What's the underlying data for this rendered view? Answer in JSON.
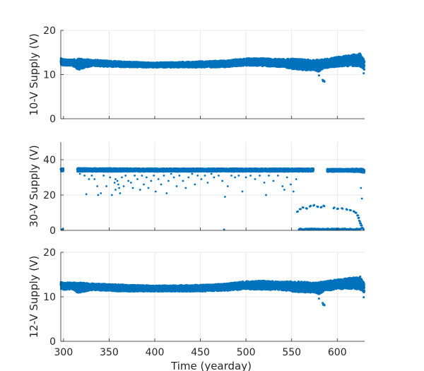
{
  "chart_data": [
    {
      "type": "scatter",
      "ylabel": "10-V Supply (V)",
      "xlabel": "",
      "xlim": [
        297,
        630
      ],
      "ylim": [
        0,
        20
      ],
      "xticks": [
        300,
        350,
        400,
        450,
        500,
        550,
        600
      ],
      "yticks": [
        0,
        10,
        20
      ],
      "show_xtick_labels": false,
      "grid": true,
      "color": "#0072BD",
      "series": [
        {
          "band_min": [
            [
              297,
              12.2
            ],
            [
              300,
              12.0
            ],
            [
              310,
              12.0
            ],
            [
              316,
              11.0
            ],
            [
              330,
              11.9
            ],
            [
              360,
              11.7
            ],
            [
              400,
              11.6
            ],
            [
              450,
              11.6
            ],
            [
              480,
              11.7
            ],
            [
              500,
              12.0
            ],
            [
              520,
              11.9
            ],
            [
              540,
              11.7
            ],
            [
              550,
              11.3
            ],
            [
              560,
              11.0
            ],
            [
              575,
              11.0
            ],
            [
              580,
              10.5
            ],
            [
              585,
              11.4
            ],
            [
              600,
              11.8
            ],
            [
              620,
              11.9
            ],
            [
              625,
              11.7
            ],
            [
              630,
              11.0
            ]
          ],
          "band_max": [
            [
              297,
              13.7
            ],
            [
              300,
              13.5
            ],
            [
              310,
              13.4
            ],
            [
              316,
              13.6
            ],
            [
              330,
              13.4
            ],
            [
              360,
              13.0
            ],
            [
              400,
              12.7
            ],
            [
              450,
              13.0
            ],
            [
              480,
              13.2
            ],
            [
              500,
              13.7
            ],
            [
              520,
              13.7
            ],
            [
              540,
              13.5
            ],
            [
              550,
              13.6
            ],
            [
              560,
              13.5
            ],
            [
              575,
              13.3
            ],
            [
              580,
              13.4
            ],
            [
              585,
              13.5
            ],
            [
              600,
              14.0
            ],
            [
              620,
              14.6
            ],
            [
              625,
              14.8
            ],
            [
              630,
              13.2
            ]
          ],
          "outliers": [
            [
              584.5,
              8.5
            ],
            [
              585.5,
              8.6
            ],
            [
              584,
              8.8
            ],
            [
              586,
              8.4
            ],
            [
              580,
              9.8
            ],
            [
              629,
              10.3
            ]
          ]
        }
      ]
    },
    {
      "type": "scatter",
      "ylabel": "30-V Supply (V)",
      "xlabel": "",
      "xlim": [
        297,
        630
      ],
      "ylim": [
        0,
        50
      ],
      "xticks": [
        300,
        350,
        400,
        450,
        500,
        550,
        600
      ],
      "yticks": [
        0,
        20,
        40
      ],
      "show_xtick_labels": false,
      "grid": true,
      "color": "#0072BD",
      "series": [
        {
          "band_min": [
            [
              297,
              33.5
            ],
            [
              316,
              33.3
            ],
            [
              400,
              33.3
            ],
            [
              500,
              33.3
            ],
            [
              573,
              33.3
            ],
            [
              590,
              33.2
            ],
            [
              610,
              33.2
            ],
            [
              625,
              33.0
            ],
            [
              630,
              32.5
            ]
          ],
          "band_max": [
            [
              297,
              35.0
            ],
            [
              316,
              35.2
            ],
            [
              400,
              35.0
            ],
            [
              500,
              35.0
            ],
            [
              573,
              35.0
            ],
            [
              590,
              34.8
            ],
            [
              610,
              34.8
            ],
            [
              625,
              35.0
            ],
            [
              630,
              34.5
            ]
          ],
          "band_gaps": [
            [
              300,
              315
            ],
            [
              574,
              589
            ]
          ],
          "low_band": [
            [
              558,
              0
            ],
            [
              626,
              0
            ]
          ],
          "mid_points": [
            [
              556,
              10.5
            ],
            [
              559,
              12
            ],
            [
              562,
              13
            ],
            [
              566,
              12.5
            ],
            [
              570,
              13.5
            ],
            [
              574,
              14
            ],
            [
              578,
              13.5
            ],
            [
              582,
              13
            ],
            [
              585,
              14
            ],
            [
              596,
              12.5
            ],
            [
              600,
              12.2
            ],
            [
              605,
              12.5
            ],
            [
              610,
              12
            ],
            [
              614,
              11.5
            ],
            [
              618,
              10.8
            ],
            [
              620,
              10
            ],
            [
              622,
              8.5
            ],
            [
              623,
              7
            ],
            [
              624,
              5.5
            ],
            [
              625,
              4
            ],
            [
              626,
              2.8
            ],
            [
              627,
              1.5
            ],
            [
              628,
              1
            ]
          ],
          "scatter": [
            [
              318,
              32
            ],
            [
              323,
              31
            ],
            [
              325,
              20.5
            ],
            [
              328,
              29
            ],
            [
              331,
              31
            ],
            [
              334,
              29
            ],
            [
              337,
              25
            ],
            [
              338,
              20
            ],
            [
              341,
              21
            ],
            [
              344,
              31
            ],
            [
              347,
              25
            ],
            [
              351,
              30
            ],
            [
              353,
              20
            ],
            [
              356,
              27
            ],
            [
              357,
              29
            ],
            [
              357,
              23
            ],
            [
              359,
              28
            ],
            [
              360,
              26
            ],
            [
              361,
              24
            ],
            [
              362,
              21
            ],
            [
              364,
              30
            ],
            [
              366,
              25
            ],
            [
              368,
              31
            ],
            [
              371,
              28
            ],
            [
              374,
              27
            ],
            [
              376,
              24
            ],
            [
              378,
              31
            ],
            [
              381,
              29
            ],
            [
              384,
              23
            ],
            [
              386,
              31
            ],
            [
              388,
              26
            ],
            [
              391,
              30
            ],
            [
              393,
              24
            ],
            [
              396,
              28
            ],
            [
              399,
              31
            ],
            [
              401,
              22
            ],
            [
              404,
              29
            ],
            [
              407,
              26
            ],
            [
              410,
              31
            ],
            [
              413,
              21
            ],
            [
              415,
              28
            ],
            [
              418,
              32
            ],
            [
              421,
              30
            ],
            [
              424,
              25
            ],
            [
              427,
              31
            ],
            [
              431,
              28
            ],
            [
              434,
              24
            ],
            [
              437,
              30
            ],
            [
              441,
              32
            ],
            [
              444,
              26
            ],
            [
              447,
              31
            ],
            [
              451,
              29
            ],
            [
              455,
              31
            ],
            [
              458,
              27
            ],
            [
              462,
              32
            ],
            [
              465,
              30
            ],
            [
              470,
              31
            ],
            [
              474,
              28
            ],
            [
              477,
              19
            ],
            [
              480,
              25
            ],
            [
              484,
              31
            ],
            [
              488,
              30
            ],
            [
              492,
              31
            ],
            [
              496,
              22
            ],
            [
              500,
              30
            ],
            [
              505,
              31
            ],
            [
              510,
              29
            ],
            [
              515,
              31
            ],
            [
              520,
              27
            ],
            [
              522,
              20
            ],
            [
              525,
              31
            ],
            [
              530,
              28
            ],
            [
              535,
              31
            ],
            [
              540,
              25
            ],
            [
              542,
              23
            ],
            [
              545,
              30
            ],
            [
              549,
              26
            ],
            [
              552,
              22
            ],
            [
              555,
              29
            ],
            [
              626,
              24
            ],
            [
              627,
              18
            ],
            [
              476,
              0.5
            ],
            [
              298,
              0.5
            ],
            [
              299,
              0.8
            ]
          ]
        }
      ]
    },
    {
      "type": "scatter",
      "ylabel": "12-V Supply (V)",
      "xlabel": "Time (yearday)",
      "xlim": [
        297,
        630
      ],
      "ylim": [
        0,
        20
      ],
      "xticks": [
        300,
        350,
        400,
        450,
        500,
        550,
        600
      ],
      "xticklabels": [
        "300",
        "350",
        "400",
        "450",
        "500",
        "550",
        "600"
      ],
      "yticks": [
        0,
        10,
        20
      ],
      "show_xtick_labels": true,
      "grid": true,
      "color": "#0072BD",
      "series": [
        {
          "band_min": [
            [
              297,
              11.7
            ],
            [
              300,
              11.6
            ],
            [
              310,
              11.6
            ],
            [
              316,
              10.8
            ],
            [
              330,
              11.5
            ],
            [
              360,
              11.2
            ],
            [
              400,
              11.2
            ],
            [
              450,
              11.2
            ],
            [
              480,
              11.4
            ],
            [
              500,
              11.7
            ],
            [
              520,
              11.6
            ],
            [
              540,
              11.5
            ],
            [
              550,
              11.2
            ],
            [
              560,
              11.0
            ],
            [
              575,
              10.9
            ],
            [
              580,
              10.5
            ],
            [
              585,
              11.3
            ],
            [
              600,
              11.7
            ],
            [
              620,
              11.8
            ],
            [
              625,
              11.5
            ],
            [
              630,
              10.8
            ]
          ],
          "band_max": [
            [
              297,
              13.4
            ],
            [
              300,
              13.2
            ],
            [
              310,
              13.2
            ],
            [
              316,
              13.3
            ],
            [
              330,
              13.0
            ],
            [
              360,
              12.8
            ],
            [
              400,
              12.5
            ],
            [
              450,
              12.7
            ],
            [
              480,
              13.0
            ],
            [
              500,
              13.5
            ],
            [
              520,
              13.6
            ],
            [
              540,
              13.4
            ],
            [
              550,
              13.5
            ],
            [
              560,
              13.4
            ],
            [
              575,
              13.2
            ],
            [
              580,
              13.3
            ],
            [
              585,
              13.4
            ],
            [
              600,
              13.9
            ],
            [
              620,
              14.4
            ],
            [
              625,
              14.6
            ],
            [
              630,
              13.0
            ]
          ],
          "outliers": [
            [
              584.5,
              8.2
            ],
            [
              585.5,
              8.3
            ],
            [
              584,
              8.6
            ],
            [
              586,
              8.1
            ],
            [
              580,
              9.6
            ],
            [
              629,
              9.9
            ]
          ]
        }
      ]
    }
  ]
}
